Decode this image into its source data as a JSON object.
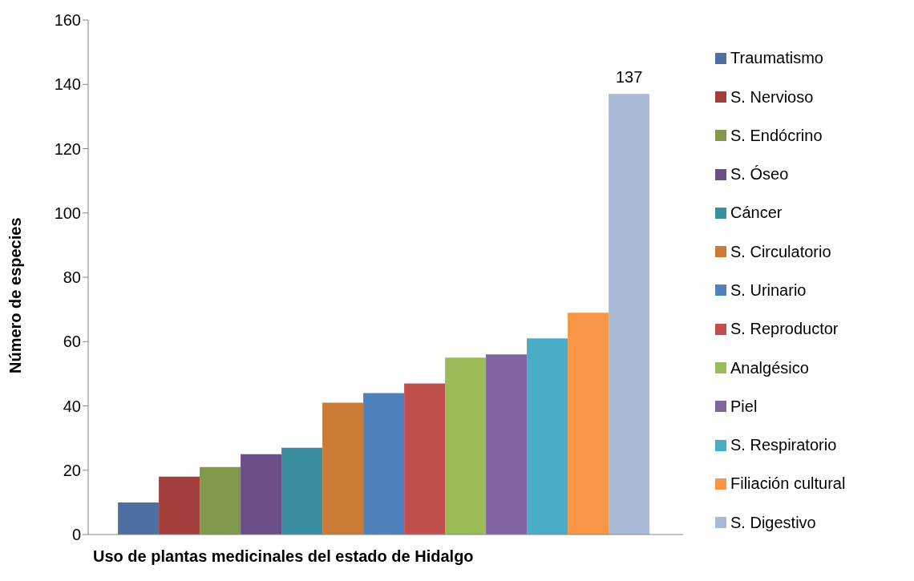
{
  "chart_data": {
    "type": "bar",
    "xlabel": "Uso de plantas medicinales del estado de Hidalgo",
    "ylabel": "Número de especies",
    "categories": [
      null
    ],
    "ylim": [
      0,
      160
    ],
    "yticks": [
      0,
      20,
      40,
      60,
      80,
      100,
      120,
      140,
      160
    ],
    "grid": false,
    "legend": "right",
    "series": [
      {
        "name": "Traumatismo",
        "color": "#4f6fa3",
        "values": [
          10
        ]
      },
      {
        "name": "S. Nervioso",
        "color": "#a33f3d",
        "values": [
          18
        ]
      },
      {
        "name": "S. Endócrino",
        "color": "#81994a",
        "values": [
          21
        ]
      },
      {
        "name": "S. Óseo",
        "color": "#6b5088",
        "values": [
          25
        ]
      },
      {
        "name": "Cáncer",
        "color": "#3b8da1",
        "values": [
          27
        ]
      },
      {
        "name": "S. Circulatorio",
        "color": "#cc7b36",
        "values": [
          41
        ]
      },
      {
        "name": "S. Urinario",
        "color": "#4f81bd",
        "values": [
          44
        ]
      },
      {
        "name": "S. Reproductor",
        "color": "#c0504d",
        "values": [
          47
        ]
      },
      {
        "name": "Analgésico",
        "color": "#9bbb59",
        "values": [
          55
        ]
      },
      {
        "name": "Piel",
        "color": "#8064a2",
        "values": [
          56
        ]
      },
      {
        "name": "S. Respiratorio",
        "color": "#4bacc6",
        "values": [
          61
        ]
      },
      {
        "name": "Filiación cultural",
        "color": "#f79646",
        "values": [
          69
        ]
      },
      {
        "name": "S. Digestivo",
        "color": "#a9b9d8",
        "values": [
          137
        ],
        "value_labels": [
          "137"
        ]
      }
    ]
  }
}
